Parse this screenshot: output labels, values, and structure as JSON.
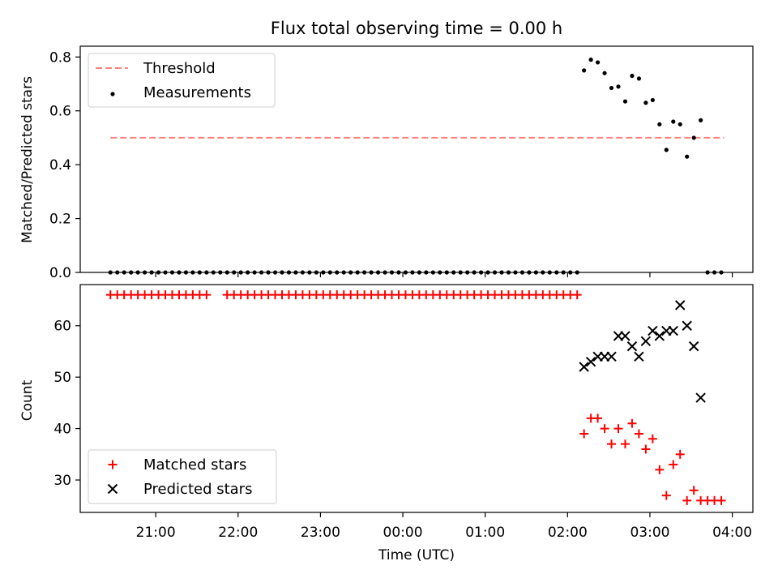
{
  "chart_data": [
    {
      "type": "scatter",
      "title": "Flux total observing time = 0.00 h",
      "xlabel": "",
      "ylabel": "Matched/Predicted stars",
      "ylim": [
        0,
        0.84
      ],
      "yticks": [
        "0.0",
        "0.2",
        "0.4",
        "0.6",
        "0.8"
      ],
      "ytick_values": [
        0,
        0.2,
        0.4,
        0.6,
        0.8
      ],
      "grid": false,
      "legend_placement": "upper left",
      "threshold": {
        "name": "Threshold",
        "value": 0.5,
        "x_start": "20:27",
        "x_end": "03:54",
        "color": "#ff8080",
        "style": "dashed"
      },
      "series": [
        {
          "name": "Measurements",
          "color": "#000000",
          "marker": "dot",
          "x": [
            "20:27",
            "20:32",
            "20:37",
            "20:42",
            "20:47",
            "20:52",
            "20:57",
            "21:02",
            "21:07",
            "21:12",
            "21:17",
            "21:22",
            "21:27",
            "21:32",
            "21:37",
            "21:42",
            "21:47",
            "21:52",
            "21:57",
            "22:02",
            "22:07",
            "22:12",
            "22:17",
            "22:22",
            "22:27",
            "22:32",
            "22:37",
            "22:42",
            "22:47",
            "22:52",
            "22:57",
            "23:02",
            "23:07",
            "23:12",
            "23:17",
            "23:22",
            "23:27",
            "23:32",
            "23:37",
            "23:42",
            "23:47",
            "23:52",
            "23:57",
            "00:02",
            "00:07",
            "00:12",
            "00:17",
            "00:22",
            "00:27",
            "00:32",
            "00:37",
            "00:42",
            "00:47",
            "00:52",
            "00:57",
            "01:02",
            "01:07",
            "01:12",
            "01:17",
            "01:22",
            "01:27",
            "01:32",
            "01:37",
            "01:42",
            "01:47",
            "01:52",
            "01:57",
            "02:02",
            "02:07",
            "02:12",
            "02:17",
            "02:22",
            "02:27",
            "02:32",
            "02:37",
            "02:42",
            "02:47",
            "02:52",
            "02:57",
            "03:02",
            "03:07",
            "03:12",
            "03:17",
            "03:22",
            "03:27",
            "03:32",
            "03:37",
            "03:42",
            "03:47",
            "03:52"
          ],
          "y": [
            0,
            0,
            0,
            0,
            0,
            0,
            0,
            0,
            0,
            0,
            0,
            0,
            0,
            0,
            0,
            0,
            0,
            0,
            0,
            0,
            0,
            0,
            0,
            0,
            0,
            0,
            0,
            0,
            0,
            0,
            0,
            0,
            0,
            0,
            0,
            0,
            0,
            0,
            0,
            0,
            0,
            0,
            0,
            0,
            0,
            0,
            0,
            0,
            0,
            0,
            0,
            0,
            0,
            0,
            0,
            0,
            0,
            0,
            0,
            0,
            0,
            0,
            0,
            0,
            0,
            0,
            0,
            0,
            0,
            0.75,
            0.79,
            0.78,
            0.74,
            0.685,
            0.69,
            0.635,
            0.73,
            0.72,
            0.63,
            0.64,
            0.55,
            0.455,
            0.56,
            0.55,
            0.43,
            0.5,
            0.565,
            0,
            0,
            0
          ]
        }
      ]
    },
    {
      "type": "scatter",
      "title": "",
      "xlabel": "Time (UTC)",
      "ylabel": "Count",
      "ylim": [
        23.7,
        68
      ],
      "yticks": [
        "30",
        "40",
        "50",
        "60"
      ],
      "ytick_values": [
        30,
        40,
        50,
        60
      ],
      "xlim": [
        "20:05",
        "04:15"
      ],
      "xticks": [
        "21:00",
        "22:00",
        "23:00",
        "00:00",
        "01:00",
        "02:00",
        "03:00",
        "04:00"
      ],
      "grid": false,
      "legend_placement": "lower left",
      "series": [
        {
          "name": "Matched stars",
          "color": "#ff0000",
          "marker": "plus",
          "x": [
            "20:27",
            "20:32",
            "20:37",
            "20:42",
            "20:47",
            "20:52",
            "20:57",
            "21:02",
            "21:07",
            "21:12",
            "21:17",
            "21:22",
            "21:27",
            "21:32",
            "21:37",
            "21:52",
            "21:57",
            "22:02",
            "22:07",
            "22:12",
            "22:17",
            "22:22",
            "22:27",
            "22:32",
            "22:37",
            "22:42",
            "22:47",
            "22:52",
            "22:57",
            "23:02",
            "23:07",
            "23:12",
            "23:17",
            "23:22",
            "23:27",
            "23:32",
            "23:37",
            "23:42",
            "23:47",
            "23:52",
            "23:57",
            "00:02",
            "00:07",
            "00:12",
            "00:17",
            "00:22",
            "00:27",
            "00:32",
            "00:37",
            "00:42",
            "00:47",
            "00:52",
            "00:57",
            "01:02",
            "01:07",
            "01:12",
            "01:17",
            "01:22",
            "01:27",
            "01:32",
            "01:37",
            "01:42",
            "01:47",
            "01:52",
            "01:57",
            "02:02",
            "02:07",
            "02:12",
            "02:17",
            "02:22",
            "02:27",
            "02:32",
            "02:37",
            "02:42",
            "02:47",
            "02:52",
            "02:57",
            "03:02",
            "03:07",
            "03:12",
            "03:17",
            "03:22",
            "03:27",
            "03:32",
            "03:37",
            "03:42",
            "03:47",
            "03:52"
          ],
          "y": [
            66,
            66,
            66,
            66,
            66,
            66,
            66,
            66,
            66,
            66,
            66,
            66,
            66,
            66,
            66,
            66,
            66,
            66,
            66,
            66,
            66,
            66,
            66,
            66,
            66,
            66,
            66,
            66,
            66,
            66,
            66,
            66,
            66,
            66,
            66,
            66,
            66,
            66,
            66,
            66,
            66,
            66,
            66,
            66,
            66,
            66,
            66,
            66,
            66,
            66,
            66,
            66,
            66,
            66,
            66,
            66,
            66,
            66,
            66,
            66,
            66,
            66,
            66,
            66,
            66,
            66,
            66,
            39,
            42,
            42,
            40,
            37,
            40,
            37,
            41,
            39,
            36,
            38,
            32,
            27,
            33,
            35,
            26,
            28,
            26,
            26,
            26,
            26
          ]
        },
        {
          "name": "Predicted stars",
          "color": "#000000",
          "marker": "x",
          "x": [
            "02:12",
            "02:17",
            "02:22",
            "02:27",
            "02:32",
            "02:37",
            "02:42",
            "02:47",
            "02:52",
            "02:57",
            "03:02",
            "03:07",
            "03:12",
            "03:17",
            "03:22",
            "03:27",
            "03:32",
            "03:37"
          ],
          "y": [
            52,
            53,
            54,
            54,
            54,
            58,
            58,
            56,
            54,
            57,
            59,
            58,
            59,
            59,
            64,
            60,
            56,
            46
          ]
        }
      ]
    }
  ]
}
